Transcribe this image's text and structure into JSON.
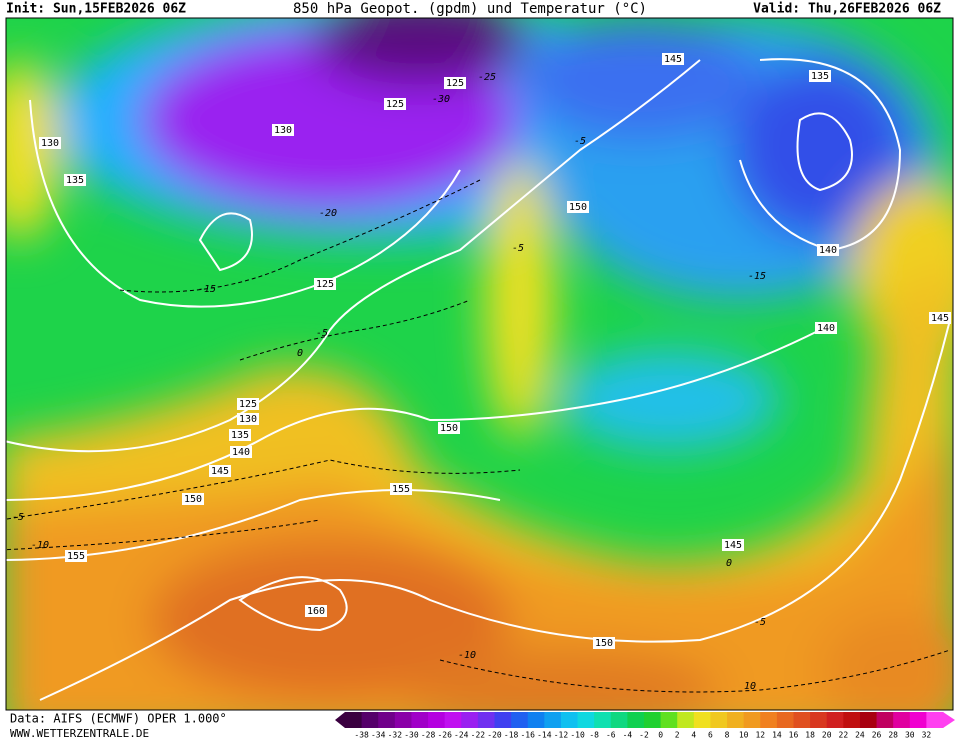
{
  "header": {
    "init": "Init: Sun,15FEB2026 06Z",
    "title": "850 hPa Geopot. (gpdm) und Temperatur (°C)",
    "valid": "Valid: Thu,26FEB2026 06Z"
  },
  "map": {
    "geopotential_labels": [
      130,
      135,
      125,
      125,
      130,
      145,
      135,
      150,
      140,
      125,
      140,
      145,
      125,
      130,
      135,
      140,
      145,
      150,
      155,
      160,
      150,
      155,
      145,
      150
    ],
    "temperature_labels": [
      0,
      -5,
      -15,
      -20,
      -25,
      -30,
      -5,
      -5,
      -15,
      -5,
      -10,
      0,
      -5,
      -10,
      10
    ]
  },
  "footer": {
    "source": "Data: AIFS (ECMWF) OPER 1.000°",
    "website": "WWW.WETTERZENTRALE.DE"
  },
  "colorbar": {
    "labels": [
      -38,
      -34,
      -32,
      -30,
      -28,
      -26,
      -24,
      -22,
      -20,
      -18,
      -16,
      -14,
      -12,
      -10,
      -8,
      -6,
      -4,
      -2,
      0,
      2,
      4,
      6,
      8,
      10,
      12,
      14,
      16,
      18,
      20,
      22,
      24,
      26,
      28,
      30,
      32
    ]
  }
}
